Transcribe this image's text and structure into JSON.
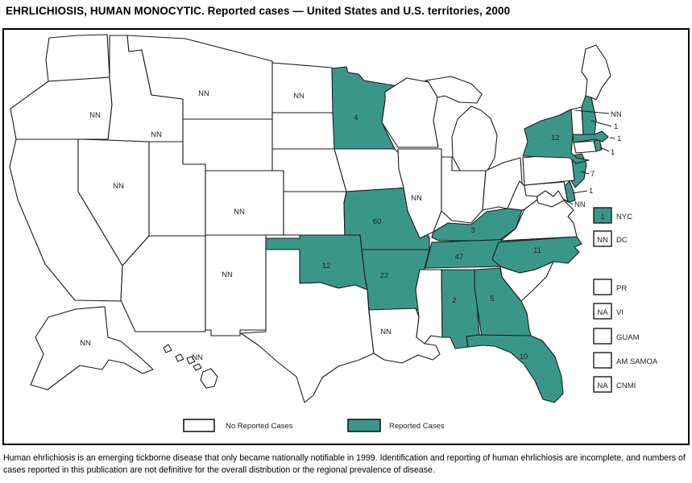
{
  "title": "EHRLICHIOSIS, HUMAN MONOCYTIC. Reported cases — United States and U.S. territories, 2000",
  "footnote": "Human ehrlichiosis is an emerging tickborne disease that only became nationally notifiable in 1999. Identification and reporting of human ehrlichiosis are incomplete, and numbers of cases reported in this publication are not definitive for the overall distribution or the regional prevalence of disease.",
  "colors": {
    "reported": "#3B968A",
    "not_reported": "#FFFFFF",
    "outline": "#1A1A1A",
    "label_text": "#222222",
    "frame": "#000000"
  },
  "legend": {
    "no_cases_label": "No Reported Cases",
    "cases_label": "Reported Cases"
  },
  "map_data": {
    "type": "choropleth",
    "unit": "reported cases",
    "value_key": "NN = not notifiable, NA = not available, blank = no reported cases",
    "states": [
      {
        "code": "WA",
        "name": "Washington",
        "value": "",
        "reported": false
      },
      {
        "code": "OR",
        "name": "Oregon",
        "value": "NN",
        "reported": false
      },
      {
        "code": "CA",
        "name": "California",
        "value": "",
        "reported": false
      },
      {
        "code": "NV",
        "name": "Nevada",
        "value": "NN",
        "reported": false
      },
      {
        "code": "ID",
        "name": "Idaho",
        "value": "NN",
        "reported": false
      },
      {
        "code": "MT",
        "name": "Montana",
        "value": "NN",
        "reported": false
      },
      {
        "code": "WY",
        "name": "Wyoming",
        "value": "",
        "reported": false
      },
      {
        "code": "UT",
        "name": "Utah",
        "value": "",
        "reported": false
      },
      {
        "code": "CO",
        "name": "Colorado",
        "value": "NN",
        "reported": false
      },
      {
        "code": "AZ",
        "name": "Arizona",
        "value": "",
        "reported": false
      },
      {
        "code": "NM",
        "name": "New Mexico",
        "value": "NN",
        "reported": false
      },
      {
        "code": "ND",
        "name": "North Dakota",
        "value": "NN",
        "reported": false
      },
      {
        "code": "SD",
        "name": "South Dakota",
        "value": "",
        "reported": false
      },
      {
        "code": "NE",
        "name": "Nebraska",
        "value": "",
        "reported": false
      },
      {
        "code": "KS",
        "name": "Kansas",
        "value": "",
        "reported": false
      },
      {
        "code": "OK",
        "name": "Oklahoma",
        "value": "12",
        "reported": true
      },
      {
        "code": "TX",
        "name": "Texas",
        "value": "",
        "reported": false
      },
      {
        "code": "MN",
        "name": "Minnesota",
        "value": "4",
        "reported": true
      },
      {
        "code": "IA",
        "name": "Iowa",
        "value": "",
        "reported": false
      },
      {
        "code": "MO",
        "name": "Missouri",
        "value": "60",
        "reported": true
      },
      {
        "code": "AR",
        "name": "Arkansas",
        "value": "22",
        "reported": true
      },
      {
        "code": "LA",
        "name": "Louisiana",
        "value": "NN",
        "reported": false
      },
      {
        "code": "WI",
        "name": "Wisconsin",
        "value": "",
        "reported": false
      },
      {
        "code": "IL",
        "name": "Illinois",
        "value": "NN",
        "reported": false
      },
      {
        "code": "MI",
        "name": "Michigan",
        "value": "",
        "reported": false
      },
      {
        "code": "IN",
        "name": "Indiana",
        "value": "",
        "reported": false
      },
      {
        "code": "OH",
        "name": "Ohio",
        "value": "",
        "reported": false
      },
      {
        "code": "KY",
        "name": "Kentucky",
        "value": "3",
        "reported": true
      },
      {
        "code": "TN",
        "name": "Tennessee",
        "value": "47",
        "reported": true
      },
      {
        "code": "MS",
        "name": "Mississippi",
        "value": "",
        "reported": false
      },
      {
        "code": "AL",
        "name": "Alabama",
        "value": "2",
        "reported": true
      },
      {
        "code": "GA",
        "name": "Georgia",
        "value": "5",
        "reported": true
      },
      {
        "code": "FL",
        "name": "Florida",
        "value": "10",
        "reported": true
      },
      {
        "code": "SC",
        "name": "South Carolina",
        "value": "",
        "reported": false
      },
      {
        "code": "NC",
        "name": "North Carolina",
        "value": "11",
        "reported": true
      },
      {
        "code": "VA",
        "name": "Virginia",
        "value": "",
        "reported": false
      },
      {
        "code": "WV",
        "name": "West Virginia",
        "value": "",
        "reported": false
      },
      {
        "code": "MD",
        "name": "Maryland",
        "value": "NN",
        "reported": false
      },
      {
        "code": "DE",
        "name": "Delaware",
        "value": "1",
        "reported": true
      },
      {
        "code": "NJ",
        "name": "New Jersey",
        "value": "7",
        "reported": true
      },
      {
        "code": "PA",
        "name": "Pennsylvania",
        "value": "",
        "reported": false
      },
      {
        "code": "NY",
        "name": "New York",
        "value": "12",
        "reported": true
      },
      {
        "code": "CT",
        "name": "Connecticut",
        "value": "",
        "reported": false
      },
      {
        "code": "RI",
        "name": "Rhode Island",
        "value": "1",
        "reported": true
      },
      {
        "code": "MA",
        "name": "Massachusetts",
        "value": "1",
        "reported": true
      },
      {
        "code": "VT",
        "name": "Vermont",
        "value": "NN",
        "reported": false
      },
      {
        "code": "NH",
        "name": "New Hampshire",
        "value": "1",
        "reported": true
      },
      {
        "code": "ME",
        "name": "Maine",
        "value": "",
        "reported": false
      },
      {
        "code": "AK",
        "name": "Alaska",
        "value": "NN",
        "reported": false
      },
      {
        "code": "HI",
        "name": "Hawaii",
        "value": "NN",
        "reported": false
      }
    ],
    "territories": [
      {
        "code": "NYC",
        "label": "NYC",
        "value": "1",
        "reported": true
      },
      {
        "code": "DC",
        "label": "DC",
        "value": "NN",
        "reported": false
      },
      {
        "code": "PR",
        "label": "PR",
        "value": "",
        "reported": false
      },
      {
        "code": "VI",
        "label": "VI",
        "value": "NA",
        "reported": false
      },
      {
        "code": "GUAM",
        "label": "GUAM",
        "value": "",
        "reported": false
      },
      {
        "code": "AMSAMOA",
        "label": "AM SAMOA",
        "value": "",
        "reported": false
      },
      {
        "code": "CNMI",
        "label": "CNMI",
        "value": "NA",
        "reported": false
      }
    ]
  }
}
